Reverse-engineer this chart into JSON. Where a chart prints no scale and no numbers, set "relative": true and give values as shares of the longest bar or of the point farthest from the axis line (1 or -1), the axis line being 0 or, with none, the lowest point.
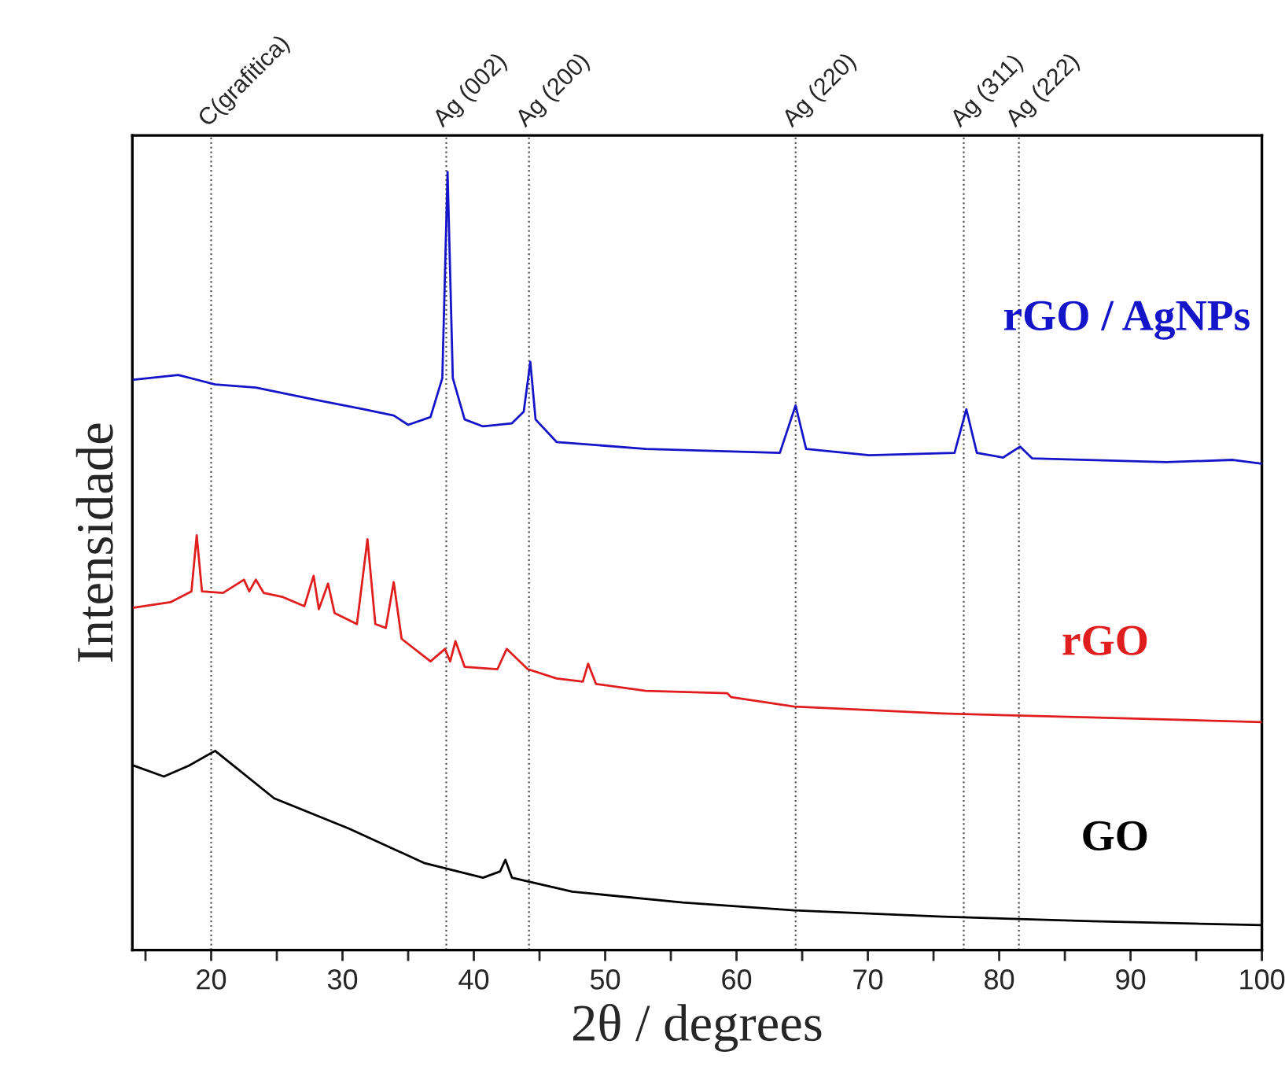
{
  "chart_data": {
    "type": "line",
    "xlabel": "2θ / degrees",
    "ylabel": "Intensidade",
    "relative": true,
    "marker": "none",
    "line_style": "solid",
    "legend": false,
    "grid": false,
    "xlim": [
      14,
      100
    ],
    "xticks": [
      {
        "value": 15,
        "label": null
      },
      20,
      {
        "value": 25,
        "label": null
      },
      30,
      {
        "value": 35,
        "label": null
      },
      40,
      {
        "value": 45,
        "label": null
      },
      50,
      {
        "value": 55,
        "label": null
      },
      60,
      {
        "value": 65,
        "label": null
      },
      70,
      {
        "value": 75,
        "label": null
      },
      80,
      {
        "value": 85,
        "label": null
      },
      90,
      {
        "value": 95,
        "label": null
      },
      100
    ],
    "series": [
      {
        "name": "rGO / AgNPs",
        "color": "#1414c8",
        "x": [
          14.1,
          17.5,
          20.3,
          23.4,
          27.7,
          31.6,
          33.9,
          35.0,
          36.7,
          37.6,
          38.0,
          38.4,
          39.3,
          40.7,
          42.9,
          43.8,
          44.3,
          44.7,
          46.3,
          53.1,
          63.3,
          64.5,
          65.3,
          70.1,
          76.6,
          77.5,
          78.3,
          80.3,
          81.6,
          82.5,
          92.7,
          97.8,
          100
        ],
        "values": [
          0.733,
          0.739,
          0.727,
          0.723,
          0.708,
          0.695,
          0.687,
          0.675,
          0.685,
          0.735,
          1.0,
          0.735,
          0.682,
          0.673,
          0.677,
          0.692,
          0.756,
          0.682,
          0.653,
          0.644,
          0.639,
          0.7,
          0.644,
          0.636,
          0.639,
          0.695,
          0.639,
          0.633,
          0.647,
          0.632,
          0.627,
          0.63,
          0.625
        ]
      },
      {
        "name": "rGO",
        "color": "#e01e1e",
        "x": [
          14.1,
          16.9,
          18.5,
          18.9,
          19.3,
          20.9,
          22.5,
          22.9,
          23.4,
          24.0,
          25.4,
          27.1,
          27.8,
          28.2,
          28.9,
          29.4,
          31.1,
          31.9,
          32.5,
          33.3,
          33.9,
          34.5,
          36.7,
          37.8,
          38.2,
          38.6,
          39.3,
          41.8,
          42.5,
          44.1,
          46.3,
          48.3,
          48.7,
          49.3,
          53.1,
          59.3,
          59.6,
          64.4,
          75.7,
          87.0,
          100
        ],
        "values": [
          0.44,
          0.447,
          0.461,
          0.533,
          0.461,
          0.459,
          0.476,
          0.461,
          0.476,
          0.459,
          0.454,
          0.442,
          0.481,
          0.438,
          0.471,
          0.433,
          0.419,
          0.528,
          0.419,
          0.414,
          0.473,
          0.4,
          0.371,
          0.387,
          0.371,
          0.397,
          0.364,
          0.361,
          0.387,
          0.361,
          0.349,
          0.345,
          0.368,
          0.342,
          0.333,
          0.33,
          0.325,
          0.313,
          0.304,
          0.299,
          0.293
        ]
      },
      {
        "name": "GO",
        "color": "#000000",
        "x": [
          14.1,
          16.4,
          18.3,
          20.3,
          21.7,
          24.8,
          30.5,
          36.2,
          40.7,
          42.0,
          42.4,
          42.9,
          47.5,
          55.9,
          64.4,
          75.7,
          87.0,
          100
        ],
        "values": [
          0.237,
          0.223,
          0.237,
          0.256,
          0.237,
          0.195,
          0.156,
          0.112,
          0.093,
          0.101,
          0.116,
          0.093,
          0.075,
          0.061,
          0.051,
          0.043,
          0.037,
          0.032
        ]
      }
    ],
    "ref_lines": [
      {
        "axis": "x",
        "value": 20.0,
        "label": "C(grafitica)",
        "color": "#555555",
        "line_style": "dotted"
      },
      {
        "axis": "x",
        "value": 37.9,
        "label": "Ag (002)",
        "color": "#555555",
        "line_style": "dotted"
      },
      {
        "axis": "x",
        "value": 44.2,
        "label": "Ag (200)",
        "color": "#555555",
        "line_style": "dotted"
      },
      {
        "axis": "x",
        "value": 64.5,
        "label": "Ag (220)",
        "color": "#555555",
        "line_style": "dotted"
      },
      {
        "axis": "x",
        "value": 77.3,
        "label": "Ag (311)",
        "color": "#555555",
        "line_style": "dotted"
      },
      {
        "axis": "x",
        "value": 81.5,
        "label": "Ag (222)",
        "color": "#555555",
        "line_style": "dotted"
      }
    ]
  }
}
